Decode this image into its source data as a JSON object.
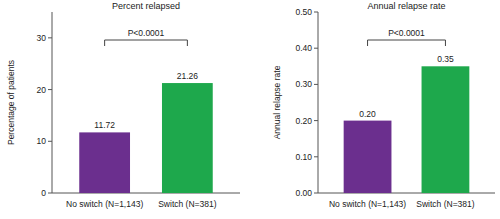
{
  "chart_data": [
    {
      "type": "bar",
      "title": "Percent relapsed",
      "y_label": "Percentage of patients",
      "categories": [
        "No switch (N=1,143)",
        "Switch (N=381)"
      ],
      "values": [
        11.72,
        21.26
      ],
      "colors": [
        "#6b2f8e",
        "#1ea84c"
      ],
      "ylim": [
        0,
        35
      ],
      "yticks": [
        0,
        10,
        20,
        30
      ],
      "data_labels": true,
      "annotations": [
        "P<0.0001"
      ]
    },
    {
      "type": "bar",
      "title": "Annual relapse rate",
      "y_label": "Annual relapse rate",
      "categories": [
        "No switch (N=1,143)",
        "Switch (N=381)"
      ],
      "values": [
        0.2,
        0.35
      ],
      "value_labels": [
        "0.20",
        "0.35"
      ],
      "colors": [
        "#6b2f8e",
        "#1ea84c"
      ],
      "ylim": [
        0,
        0.5
      ],
      "yticks": [
        {
          "value": 0,
          "label": "0.00"
        },
        {
          "value": 0.1,
          "label": "0.10"
        },
        {
          "value": 0.2,
          "label": "0.20"
        },
        {
          "value": 0.3,
          "label": "0.30"
        },
        {
          "value": 0.4,
          "label": "0.40"
        },
        {
          "value": 0.5,
          "label": "0.50"
        }
      ],
      "data_labels": true,
      "annotations": [
        "P<0.0001"
      ]
    }
  ]
}
